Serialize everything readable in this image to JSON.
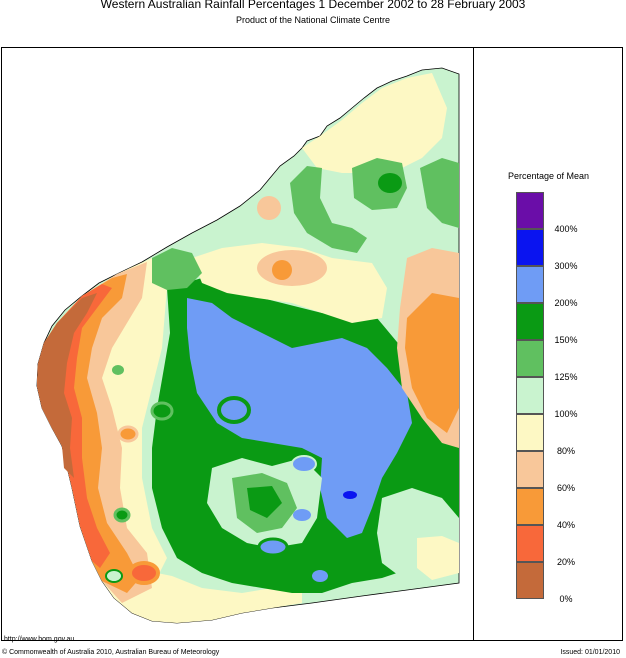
{
  "header": {
    "title": "Western Australian Rainfall Percentages 1 December 2002 to 28 February 2003",
    "subtitle": "Product of the National Climate Centre"
  },
  "legend": {
    "title": "Percentage of Mean",
    "items": [
      {
        "label": "400%",
        "color": "#6a0da8"
      },
      {
        "label": "300%",
        "color": "#0a14f0"
      },
      {
        "label": "200%",
        "color": "#6f9cf5"
      },
      {
        "label": "150%",
        "color": "#0a9a14"
      },
      {
        "label": "125%",
        "color": "#60c060"
      },
      {
        "label": "100%",
        "color": "#c9f3cf"
      },
      {
        "label": "80%",
        "color": "#fdf8c4"
      },
      {
        "label": "60%",
        "color": "#f8c79a"
      },
      {
        "label": "40%",
        "color": "#f89a38"
      },
      {
        "label": "20%",
        "color": "#f8683a"
      },
      {
        "label": "0%",
        "color": "#c46a3a"
      }
    ]
  },
  "footer": {
    "url": "http://www.bom.gov.au",
    "copyright": "© Commonwealth of Australia 2010, Australian Bureau of Meteorology",
    "issued": "Issued: 01/01/2010"
  }
}
